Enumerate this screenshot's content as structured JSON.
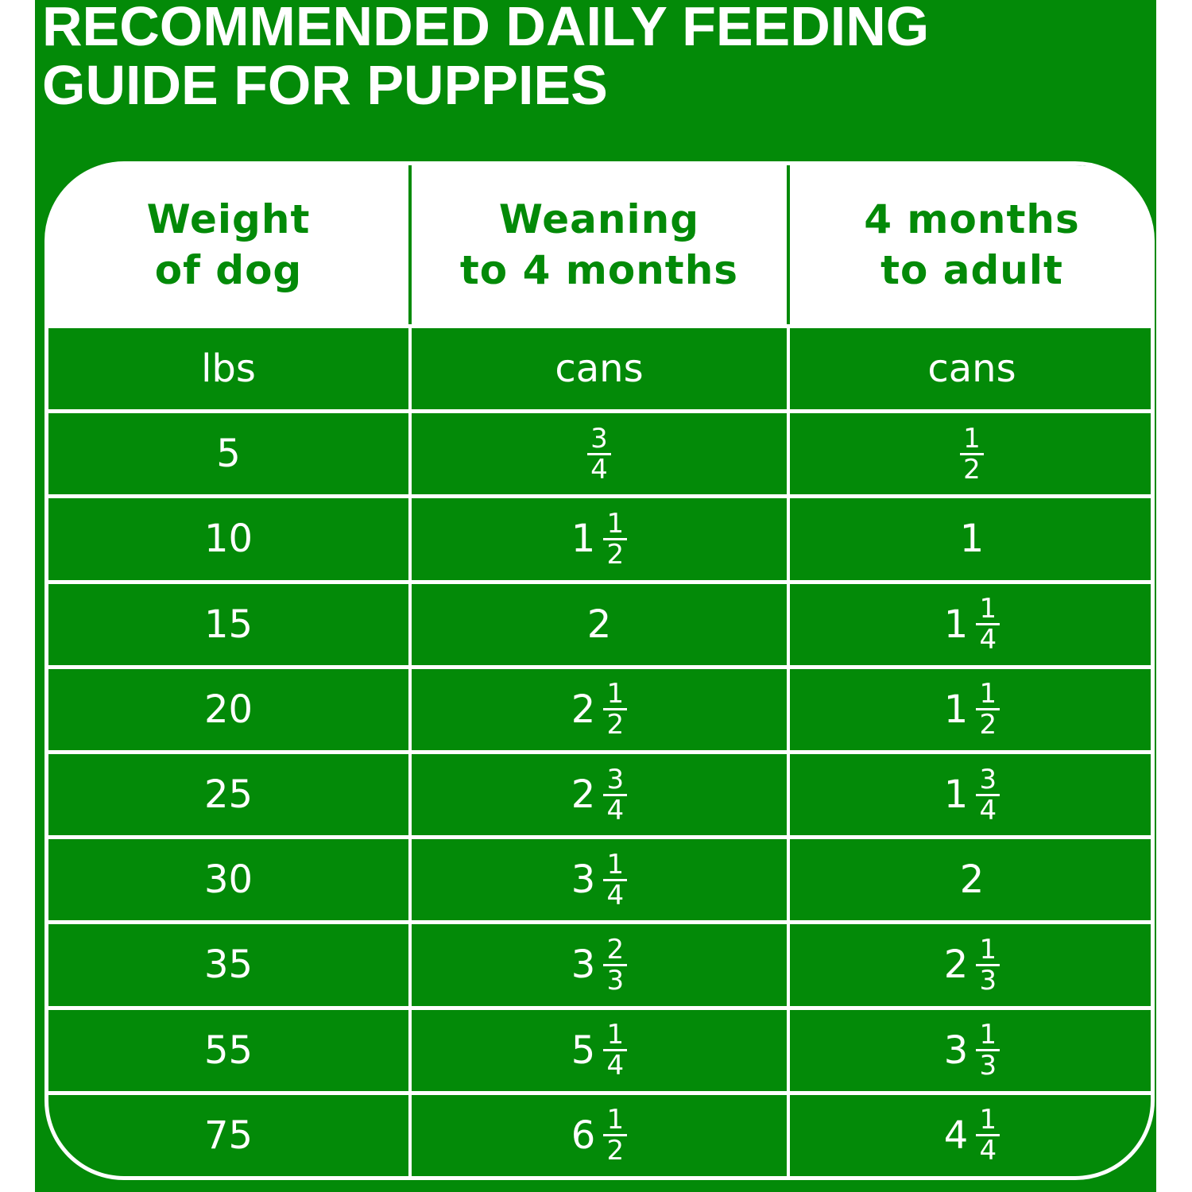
{
  "title": [
    "RECOMMENDED DAILY FEEDING",
    "GUIDE FOR PUPPIES"
  ],
  "colors": {
    "brand_green": "#038a08",
    "white": "#ffffff"
  },
  "table": {
    "headers": [
      [
        "Weight",
        "of dog"
      ],
      [
        "Weaning",
        "to 4 months"
      ],
      [
        "4 months",
        "to adult"
      ]
    ],
    "units": [
      "lbs",
      "cans",
      "cans"
    ],
    "rows": [
      {
        "weight": "5",
        "weaning": {
          "whole": "",
          "num": "3",
          "den": "4"
        },
        "adult": {
          "whole": "",
          "num": "1",
          "den": "2"
        }
      },
      {
        "weight": "10",
        "weaning": {
          "whole": "1",
          "num": "1",
          "den": "2"
        },
        "adult": {
          "whole": "1",
          "num": "",
          "den": ""
        }
      },
      {
        "weight": "15",
        "weaning": {
          "whole": "2",
          "num": "",
          "den": ""
        },
        "adult": {
          "whole": "1",
          "num": "1",
          "den": "4"
        }
      },
      {
        "weight": "20",
        "weaning": {
          "whole": "2",
          "num": "1",
          "den": "2"
        },
        "adult": {
          "whole": "1",
          "num": "1",
          "den": "2"
        }
      },
      {
        "weight": "25",
        "weaning": {
          "whole": "2",
          "num": "3",
          "den": "4"
        },
        "adult": {
          "whole": "1",
          "num": "3",
          "den": "4"
        }
      },
      {
        "weight": "30",
        "weaning": {
          "whole": "3",
          "num": "1",
          "den": "4"
        },
        "adult": {
          "whole": "2",
          "num": "",
          "den": ""
        }
      },
      {
        "weight": "35",
        "weaning": {
          "whole": "3",
          "num": "2",
          "den": "3"
        },
        "adult": {
          "whole": "2",
          "num": "1",
          "den": "3"
        }
      },
      {
        "weight": "55",
        "weaning": {
          "whole": "5",
          "num": "1",
          "den": "4"
        },
        "adult": {
          "whole": "3",
          "num": "1",
          "den": "3"
        }
      },
      {
        "weight": "75",
        "weaning": {
          "whole": "6",
          "num": "1",
          "den": "2"
        },
        "adult": {
          "whole": "4",
          "num": "1",
          "den": "4"
        }
      }
    ]
  }
}
